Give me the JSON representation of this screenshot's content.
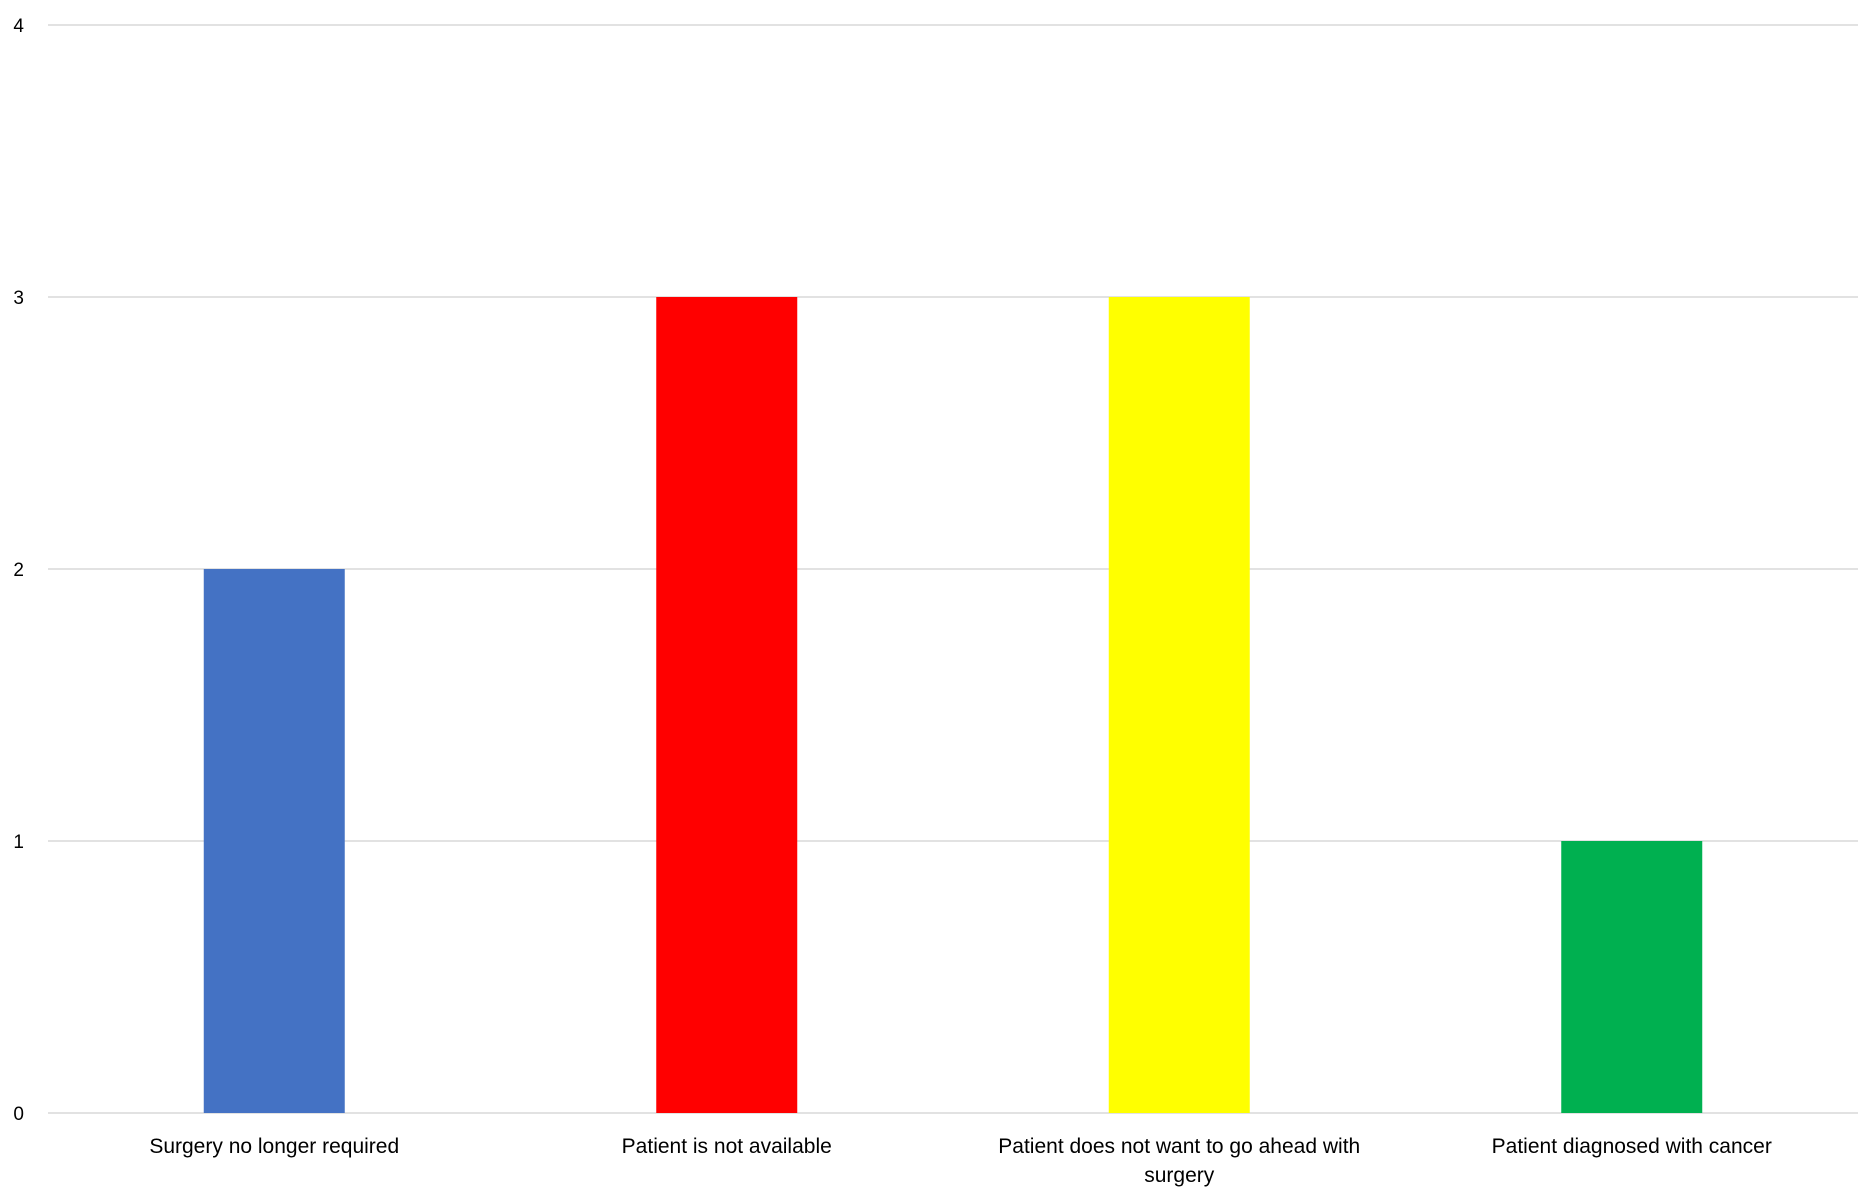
{
  "chart_data": {
    "type": "bar",
    "title": "",
    "xlabel": "",
    "ylabel": "",
    "categories": [
      "Surgery no longer required",
      "Patient is not available",
      "Patient does not want to go ahead with surgery",
      "Patient diagnosed with  cancer"
    ],
    "values": [
      2,
      3,
      3,
      1
    ],
    "colors": [
      "#4472c4",
      "#ff0000",
      "#ffff00",
      "#00b050"
    ],
    "ylim": [
      0,
      4
    ],
    "yticks": [
      0,
      1,
      2,
      3,
      4
    ],
    "grid": true,
    "legend": "none"
  }
}
